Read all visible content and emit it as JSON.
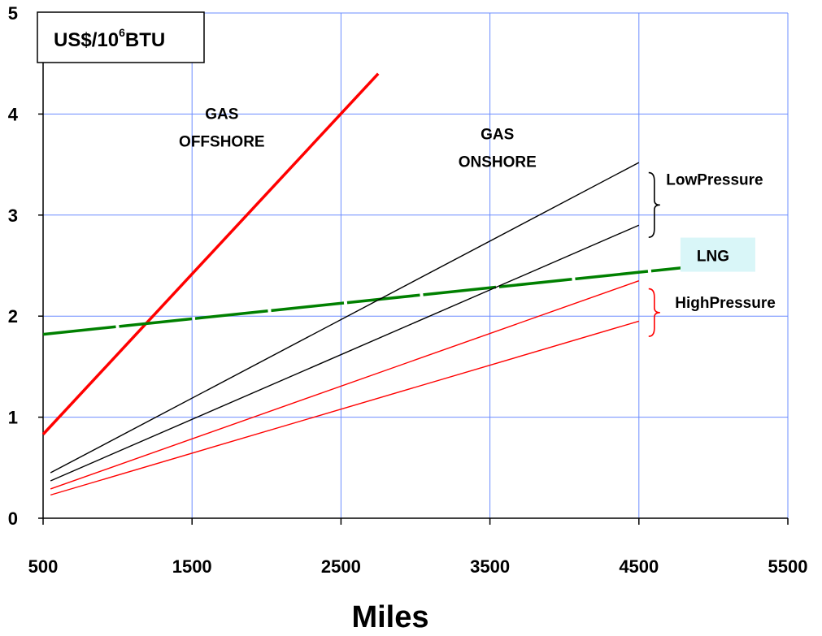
{
  "chart_data": {
    "type": "line",
    "title": "",
    "xlabel": "Miles",
    "ylabel": "",
    "xlim": [
      500,
      5500
    ],
    "ylim": [
      0,
      5
    ],
    "x_ticks": [
      500,
      1500,
      2500,
      3500,
      4500,
      5500
    ],
    "y_ticks": [
      0,
      1,
      2,
      3,
      4,
      5
    ],
    "grid": true,
    "legend": "none",
    "unit_box": {
      "base": "US$/10",
      "sup": "6",
      "suffix": "BTU"
    },
    "series": [
      {
        "name": "",
        "color": "#ff0000",
        "width": "thick",
        "x": [
          500,
          2750
        ],
        "y": [
          0.83,
          4.4
        ]
      },
      {
        "name": "",
        "color": "#008000",
        "width": "thick",
        "dashed": true,
        "x": [
          500,
          4800
        ],
        "y": [
          1.82,
          2.48
        ]
      },
      {
        "name": "",
        "color": "#000000",
        "width": "thin",
        "x": [
          550,
          4500
        ],
        "y": [
          0.45,
          3.52
        ]
      },
      {
        "name": "",
        "color": "#000000",
        "width": "thin",
        "x": [
          550,
          4500
        ],
        "y": [
          0.37,
          2.9
        ]
      },
      {
        "name": "",
        "color": "#ff0000",
        "width": "thin",
        "x": [
          550,
          4500
        ],
        "y": [
          0.29,
          2.35
        ]
      },
      {
        "name": "",
        "color": "#ff0000",
        "width": "thin",
        "x": [
          550,
          4500
        ],
        "y": [
          0.23,
          1.95
        ]
      }
    ],
    "annotations": [
      {
        "lines": [
          "GAS",
          "OFFSHORE"
        ],
        "x": 1700,
        "y": 3.95
      },
      {
        "lines": [
          "GAS",
          "ONSHORE"
        ],
        "x": 3550,
        "y": 3.75
      },
      {
        "text": "LowPressure",
        "x": 4650,
        "y": 3.3,
        "brace_color": "#000000",
        "brace_y": [
          2.78,
          3.42
        ]
      },
      {
        "text": "LNG",
        "x": 4790,
        "y": 2.6,
        "background": "#d9f6f8"
      },
      {
        "text": "HighPressure",
        "x": 4710,
        "y": 2.08,
        "brace_color": "#ff0000",
        "brace_y": [
          1.8,
          2.27
        ]
      }
    ]
  }
}
